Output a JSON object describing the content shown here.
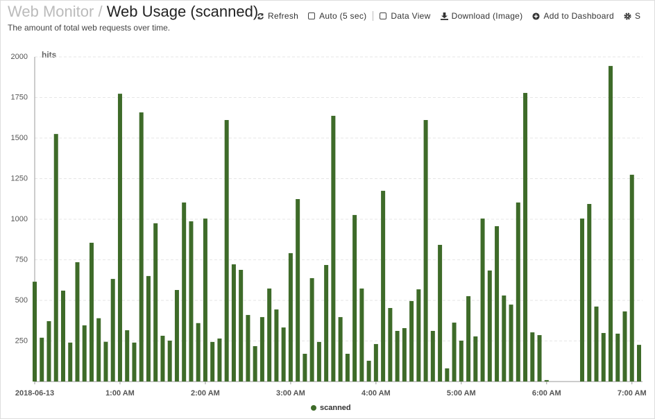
{
  "header": {
    "breadcrumb": "Web Monitor",
    "separator": "/",
    "title": "Web Usage (scanned)",
    "subtitle": "The amount of total web requests over time."
  },
  "toolbar": [
    "Refresh",
    "Auto (5 sec)",
    "Data View",
    "Download (Image)",
    "Add to Dashboard",
    "S"
  ],
  "chart_data": {
    "type": "bar",
    "y_label": "hits",
    "color": "#3e6b29",
    "grid": true,
    "legend": "bottom",
    "series": [
      {
        "name": "scanned",
        "color": "#3e6b29",
        "values": [
          615,
          270,
          372,
          1525,
          560,
          240,
          735,
          346,
          855,
          390,
          245,
          632,
          1773,
          316,
          240,
          1658,
          650,
          975,
          282,
          252,
          564,
          1103,
          987,
          360,
          1004,
          244,
          265,
          1611,
          722,
          688,
          410,
          218,
          397,
          573,
          444,
          333,
          791,
          1124,
          171,
          637,
          244,
          718,
          1637,
          397,
          171,
          1026,
          573,
          128,
          231,
          1175,
          453,
          312,
          329,
          496,
          568,
          1611,
          312,
          842,
          81,
          363,
          252,
          526,
          278,
          1004,
          684,
          957,
          530,
          474,
          1103,
          1778,
          303,
          286,
          9,
          null,
          null,
          null,
          null,
          1004,
          1094,
          462,
          299,
          1944,
          295,
          432,
          1274,
          226
        ]
      }
    ],
    "categories": [
      "2018-06-13",
      null,
      null,
      null,
      null,
      null,
      null,
      null,
      null,
      null,
      null,
      null,
      "1:00 AM",
      null,
      null,
      null,
      null,
      null,
      null,
      null,
      null,
      null,
      null,
      null,
      "2:00 AM",
      null,
      null,
      null,
      null,
      null,
      null,
      null,
      null,
      null,
      null,
      null,
      "3:00 AM",
      null,
      null,
      null,
      null,
      null,
      null,
      null,
      null,
      null,
      null,
      null,
      "4:00 AM",
      null,
      null,
      null,
      null,
      null,
      null,
      null,
      null,
      null,
      null,
      null,
      "5:00 AM",
      null,
      null,
      null,
      null,
      null,
      null,
      null,
      null,
      null,
      null,
      null,
      "6:00 AM",
      null,
      null,
      null,
      null,
      null,
      null,
      null,
      null,
      null,
      null,
      null,
      "7:00 AM",
      null
    ],
    "ylim": [
      0,
      2000
    ],
    "yticks": [
      250,
      500,
      750,
      1000,
      1250,
      1500,
      1750,
      2000
    ]
  }
}
